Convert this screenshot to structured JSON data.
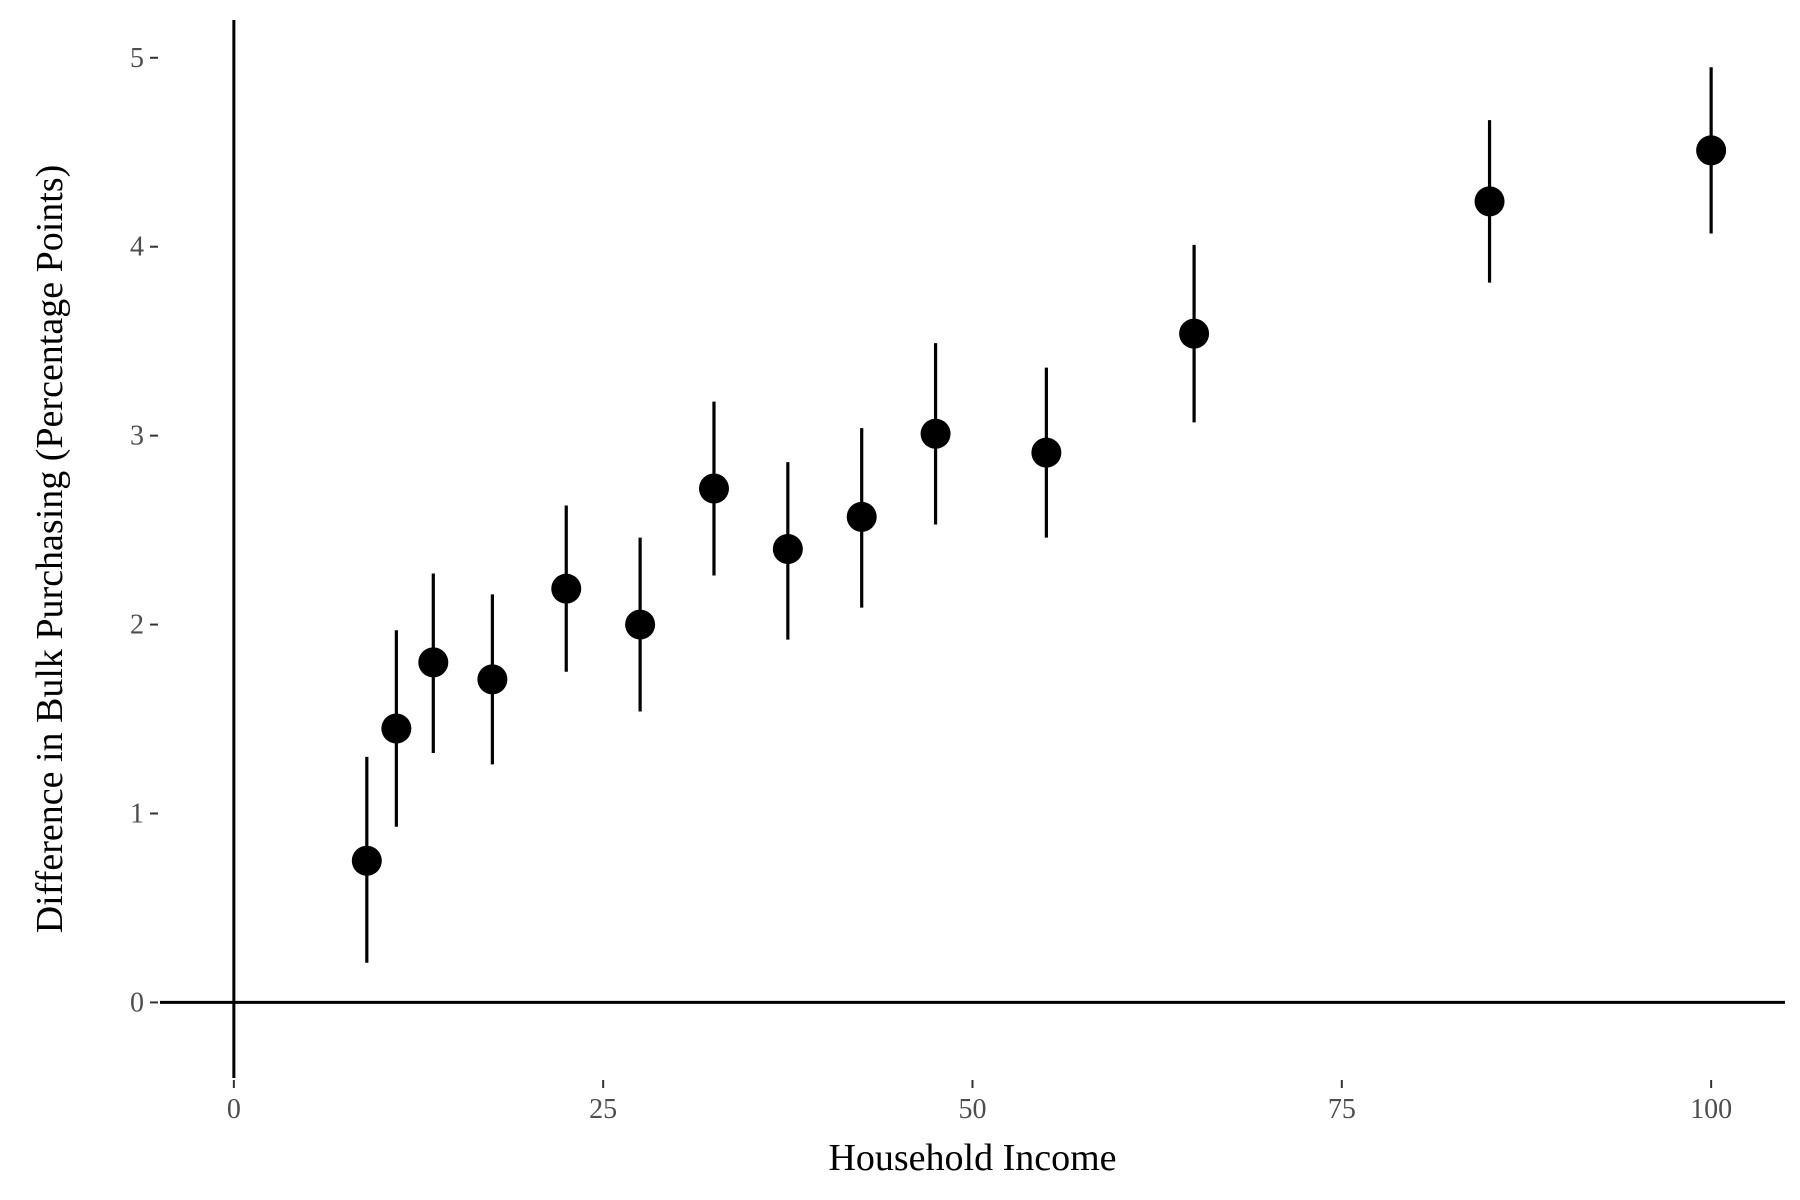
{
  "chart_data": {
    "type": "scatter",
    "title": "",
    "xlabel": "Household Income",
    "ylabel": "Difference in Bulk Purchasing (Percentage Points)",
    "xlim": [
      -5,
      105
    ],
    "ylim": [
      -0.4,
      5.2
    ],
    "xticks": [
      0,
      25,
      50,
      75,
      100
    ],
    "yticks": [
      0,
      1,
      2,
      3,
      4,
      5
    ],
    "grid": false,
    "legend": "none",
    "series": [
      {
        "x": [
          9,
          11,
          13.5,
          17.5,
          22.5,
          27.5,
          32.5,
          37.5,
          42.5,
          47.5,
          55,
          65,
          85,
          100
        ],
        "y": [
          0.75,
          1.45,
          1.8,
          1.71,
          2.19,
          2.0,
          2.72,
          2.4,
          2.57,
          3.01,
          2.91,
          3.54,
          4.24,
          4.51
        ],
        "ci_low": [
          0.21,
          0.93,
          1.32,
          1.26,
          1.75,
          1.54,
          2.26,
          1.92,
          2.09,
          2.53,
          2.46,
          3.07,
          3.81,
          4.07
        ],
        "ci_high": [
          1.3,
          1.97,
          2.27,
          2.16,
          2.63,
          2.46,
          3.18,
          2.86,
          3.04,
          3.49,
          3.36,
          4.01,
          4.67,
          4.95
        ]
      }
    ],
    "colors": {
      "point": "#000000",
      "axis": "#000000",
      "tick_label": "#4d4d4d"
    }
  }
}
